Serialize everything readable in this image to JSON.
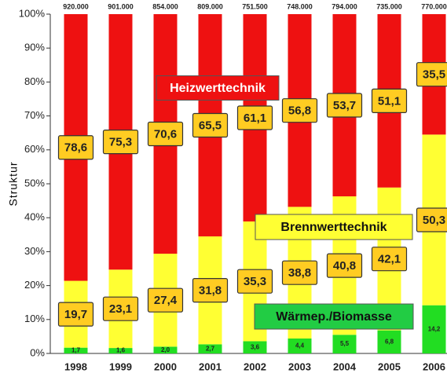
{
  "chart_data": {
    "type": "stacked_bar",
    "y_label": "Struktur",
    "categories": [
      "1998",
      "1999",
      "2000",
      "2001",
      "2002",
      "2003",
      "2004",
      "2005",
      "2006"
    ],
    "top_labels": [
      "920.000",
      "901.000",
      "854.000",
      "809.000",
      "751.500",
      "748.000",
      "794.000",
      "735.000",
      "770.000"
    ],
    "series": [
      {
        "name": "Wärmep./Biomasse",
        "color": "#22dd22",
        "legend_color": "#22cc44",
        "values": [
          1.7,
          1.6,
          2.0,
          2.7,
          3.6,
          4.4,
          5.5,
          6.8,
          14.2
        ],
        "value_labels": [
          "1,7",
          "1,6",
          "2,0",
          "2,7",
          "3,6",
          "4,4",
          "5,5",
          "6,8",
          "14,2"
        ]
      },
      {
        "name": "Brennwerttechnik",
        "color": "#ffff33",
        "legend_color": "#ffff33",
        "values": [
          19.7,
          23.1,
          27.4,
          31.8,
          35.3,
          38.8,
          40.8,
          42.1,
          50.3
        ],
        "value_labels": [
          "19,7",
          "23,1",
          "27,4",
          "31,8",
          "35,3",
          "38,8",
          "40,8",
          "42,1",
          "50,3"
        ]
      },
      {
        "name": "Heizwerttechnik",
        "color": "#ee1111",
        "legend_color": "#ee1111",
        "values": [
          78.6,
          75.3,
          70.6,
          65.5,
          61.1,
          56.8,
          53.7,
          51.1,
          35.5
        ],
        "value_labels": [
          "78,6",
          "75,3",
          "70,6",
          "65,5",
          "61,1",
          "56,8",
          "53,7",
          "51,1",
          "35,5"
        ]
      }
    ],
    "ylim": [
      0,
      100
    ],
    "yticks": [
      {
        "value": 0,
        "label": "0%"
      },
      {
        "value": 10,
        "label": "10%"
      },
      {
        "value": 20,
        "label": "20%"
      },
      {
        "value": 30,
        "label": "30%"
      },
      {
        "value": 40,
        "label": "40%"
      },
      {
        "value": 50,
        "label": "50%"
      },
      {
        "value": 60,
        "label": "60%"
      },
      {
        "value": 70,
        "label": "70%"
      },
      {
        "value": 80,
        "label": "80%"
      },
      {
        "value": 90,
        "label": "90%"
      },
      {
        "value": 100,
        "label": "100%"
      }
    ]
  }
}
